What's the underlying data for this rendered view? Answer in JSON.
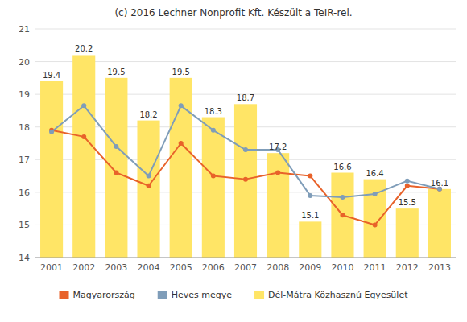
{
  "chart_data": {
    "type": "bar",
    "title": "(c) 2016 Lechner Nonprofit Kft. Készült a TeIR-rel.",
    "categories": [
      "2001",
      "2002",
      "2003",
      "2004",
      "2005",
      "2006",
      "2007",
      "2008",
      "2009",
      "2010",
      "2011",
      "2012",
      "2013"
    ],
    "series": [
      {
        "name": "Magyarország",
        "type": "line",
        "color": "#E8622A",
        "marker": "circle",
        "values": [
          17.9,
          17.7,
          16.6,
          16.2,
          17.5,
          16.5,
          16.4,
          16.6,
          16.5,
          15.3,
          15.0,
          16.2,
          16.1
        ]
      },
      {
        "name": "Heves megye",
        "type": "line",
        "color": "#7F9DB9",
        "marker": "circle",
        "values": [
          17.85,
          18.65,
          17.4,
          16.5,
          18.65,
          17.9,
          17.3,
          17.3,
          15.9,
          15.85,
          15.95,
          16.35,
          16.1
        ]
      },
      {
        "name": "Dél-Mátra Közhasznú Egyesület",
        "type": "bar",
        "color": "#FFE566",
        "data_labels": true,
        "values": [
          19.4,
          20.2,
          19.5,
          18.2,
          19.5,
          18.3,
          18.7,
          17.2,
          15.1,
          16.6,
          16.4,
          15.5,
          16.1
        ]
      }
    ],
    "ylim": [
      14,
      21
    ],
    "yticks": [
      14,
      15,
      16,
      17,
      18,
      19,
      20,
      21
    ],
    "grid": true,
    "legend": "bottom"
  }
}
